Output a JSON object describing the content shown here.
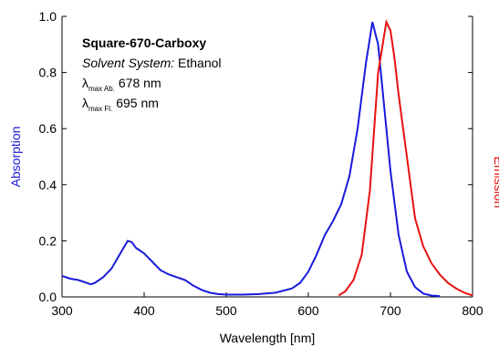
{
  "chart_data": {
    "type": "line",
    "xlabel": "Wavelength [nm]",
    "ylabel": "Absorption",
    "y2label": "Emission",
    "xlim": [
      300,
      800
    ],
    "xticks": [
      300,
      400,
      500,
      600,
      700,
      800
    ],
    "ylim": [
      0,
      1
    ],
    "yticks": [
      {
        "value": 0,
        "label": "0.0"
      },
      0.2,
      0.4,
      0.6,
      0.8,
      {
        "value": 1,
        "label": "1.0"
      }
    ],
    "annotations": {
      "title": "Square-670-Carboxy",
      "solvent_label": "Solvent System:",
      "solvent": "Ethanol",
      "lines": [
        {
          "symbol": "λ",
          "sub": "max Ab.",
          "text": "678 nm"
        },
        {
          "symbol": "λ",
          "sub": "max Fl.",
          "text": "695 nm"
        }
      ]
    },
    "series": [
      {
        "name": "Absorption",
        "color": "#1a1adc",
        "x": [
          300,
          310,
          320,
          330,
          335,
          340,
          350,
          360,
          370,
          380,
          385,
          390,
          400,
          410,
          420,
          430,
          440,
          450,
          460,
          470,
          480,
          490,
          500,
          520,
          540,
          560,
          580,
          590,
          600,
          610,
          620,
          630,
          640,
          650,
          660,
          670,
          678,
          685,
          690,
          700,
          710,
          720,
          730,
          740,
          750,
          760
        ],
        "values": [
          0.075,
          0.065,
          0.06,
          0.05,
          0.045,
          0.05,
          0.07,
          0.1,
          0.15,
          0.2,
          0.195,
          0.175,
          0.155,
          0.125,
          0.095,
          0.08,
          0.07,
          0.06,
          0.04,
          0.025,
          0.015,
          0.01,
          0.008,
          0.008,
          0.01,
          0.015,
          0.03,
          0.05,
          0.09,
          0.15,
          0.22,
          0.27,
          0.33,
          0.43,
          0.6,
          0.83,
          0.98,
          0.9,
          0.75,
          0.45,
          0.22,
          0.09,
          0.035,
          0.012,
          0.005,
          0.003
        ]
      },
      {
        "name": "Emission",
        "color": "#e81010",
        "x": [
          637,
          645,
          655,
          665,
          675,
          685,
          695,
          700,
          705,
          710,
          720,
          730,
          740,
          750,
          760,
          770,
          780,
          790,
          800
        ],
        "values": [
          0.005,
          0.02,
          0.06,
          0.15,
          0.38,
          0.8,
          0.98,
          0.95,
          0.85,
          0.72,
          0.5,
          0.28,
          0.18,
          0.12,
          0.08,
          0.05,
          0.03,
          0.015,
          0.005
        ]
      }
    ]
  }
}
